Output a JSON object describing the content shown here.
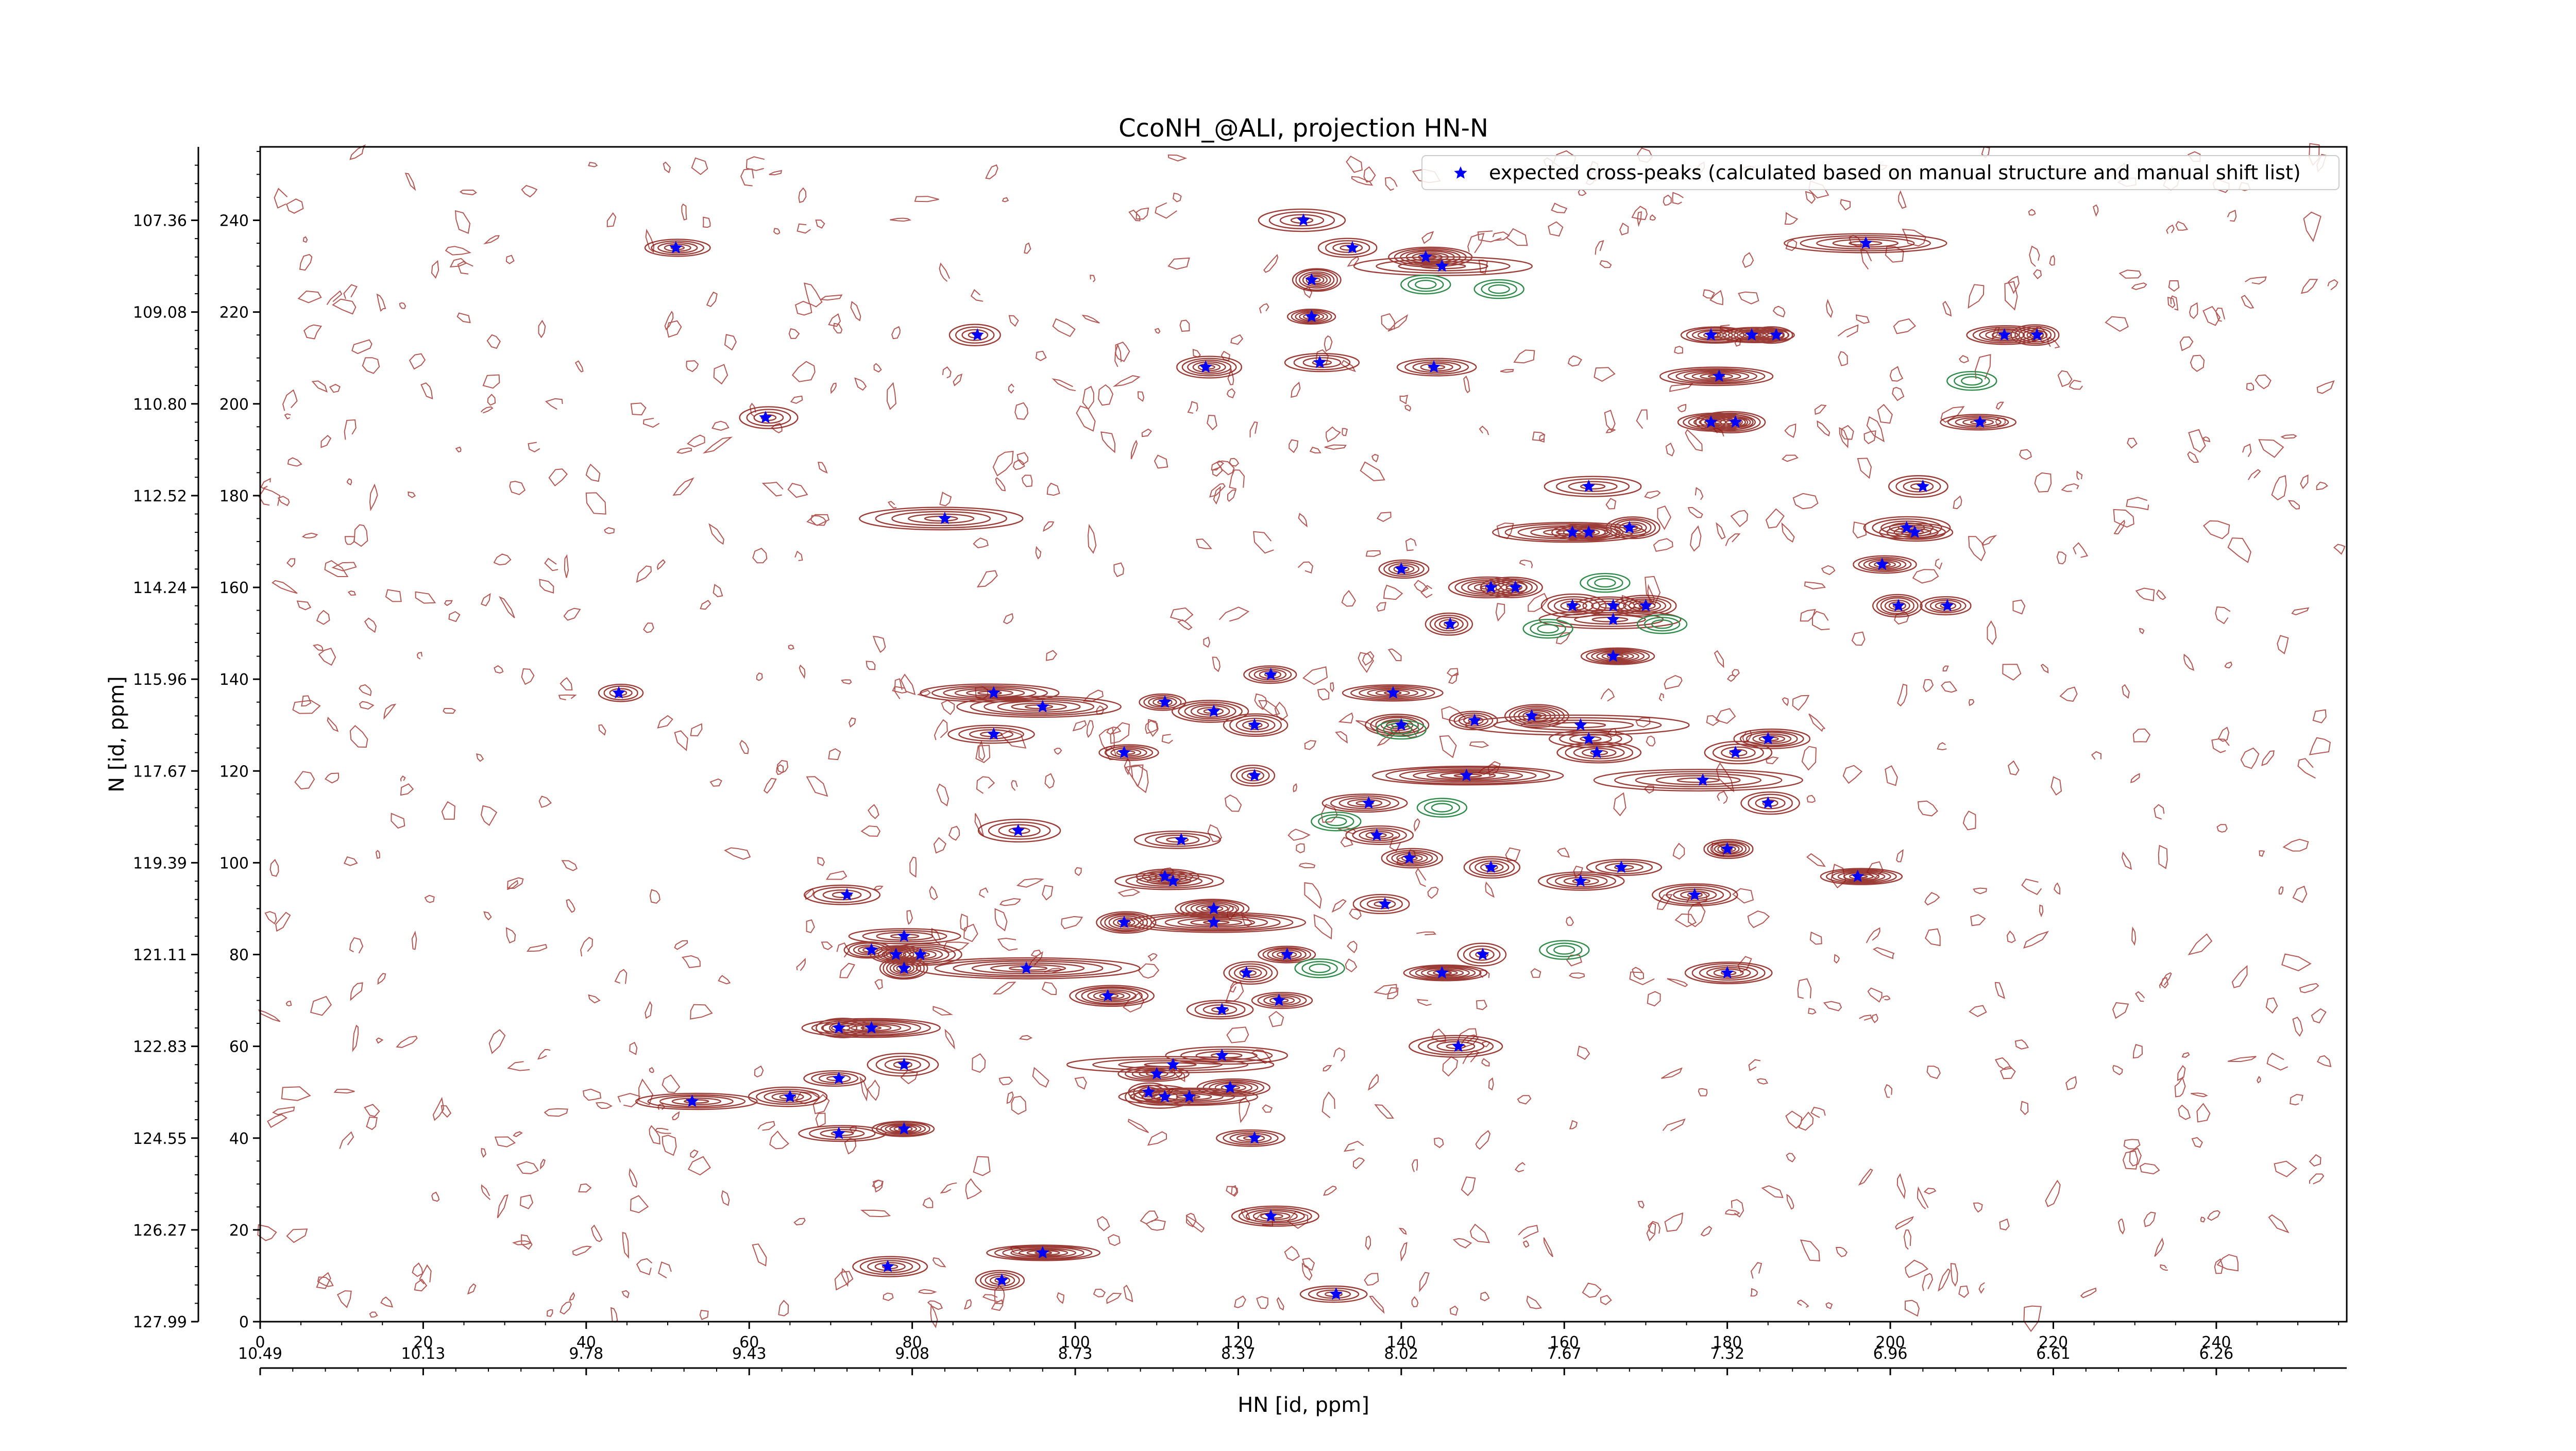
{
  "chart_data": {
    "type": "scatter",
    "title": "CcoNH_@ALI, projection HN-N",
    "xlabel": "HN [id, ppm]",
    "ylabel": "N [id, ppm]",
    "x_index_range": [
      0,
      256
    ],
    "y_index_range": [
      0,
      256
    ],
    "x_index_ticks": [
      0,
      20,
      40,
      60,
      80,
      100,
      120,
      140,
      160,
      180,
      200,
      220,
      240
    ],
    "x_ppm_range": [
      10.49,
      5.98
    ],
    "x_ppm_tick_labels": [
      "10.49",
      "10.13",
      "9.78",
      "9.43",
      "9.08",
      "8.73",
      "8.37",
      "8.02",
      "7.67",
      "7.32",
      "6.96",
      "6.61",
      "6.26"
    ],
    "y_index_ticks": [
      0,
      20,
      40,
      60,
      80,
      100,
      120,
      140,
      160,
      180,
      200,
      220,
      240
    ],
    "y_ppm_tick_labels": [
      "127.99",
      "126.27",
      "124.55",
      "122.83",
      "121.11",
      "119.39",
      "117.67",
      "115.96",
      "114.24",
      "112.52",
      "110.80",
      "109.08",
      "107.36"
    ],
    "grid": false,
    "legend_position": "top-right",
    "series": [
      {
        "name": "expected cross-peaks (calculated based on manual structure and manual shift list)",
        "color": "#0000ff",
        "marker": "star",
        "points": [
          [
            51,
            234
          ],
          [
            128,
            240
          ],
          [
            134,
            234
          ],
          [
            143,
            232
          ],
          [
            145,
            230
          ],
          [
            129,
            227
          ],
          [
            129,
            219
          ],
          [
            197,
            235
          ],
          [
            88,
            215
          ],
          [
            130,
            209
          ],
          [
            116,
            208
          ],
          [
            144,
            208
          ],
          [
            62,
            197
          ],
          [
            178,
            215
          ],
          [
            183,
            215
          ],
          [
            186,
            215
          ],
          [
            214,
            215
          ],
          [
            218,
            215
          ],
          [
            179,
            206
          ],
          [
            178,
            196
          ],
          [
            181,
            196
          ],
          [
            211,
            196
          ],
          [
            163,
            182
          ],
          [
            204,
            182
          ],
          [
            161,
            172
          ],
          [
            163,
            172
          ],
          [
            168,
            173
          ],
          [
            202,
            173
          ],
          [
            203,
            172
          ],
          [
            84,
            175
          ],
          [
            140,
            164
          ],
          [
            151,
            160
          ],
          [
            154,
            160
          ],
          [
            199,
            165
          ],
          [
            161,
            156
          ],
          [
            166,
            156
          ],
          [
            170,
            156
          ],
          [
            201,
            156
          ],
          [
            207,
            156
          ],
          [
            146,
            152
          ],
          [
            166,
            153
          ],
          [
            166,
            145
          ],
          [
            44,
            137
          ],
          [
            90,
            137
          ],
          [
            96,
            134
          ],
          [
            111,
            135
          ],
          [
            117,
            133
          ],
          [
            124,
            141
          ],
          [
            139,
            137
          ],
          [
            140,
            130
          ],
          [
            122,
            130
          ],
          [
            90,
            128
          ],
          [
            149,
            131
          ],
          [
            156,
            132
          ],
          [
            162,
            130
          ],
          [
            163,
            127
          ],
          [
            164,
            124
          ],
          [
            185,
            127
          ],
          [
            181,
            124
          ],
          [
            177,
            118
          ],
          [
            106,
            124
          ],
          [
            122,
            119
          ],
          [
            148,
            119
          ],
          [
            185,
            113
          ],
          [
            136,
            113
          ],
          [
            93,
            107
          ],
          [
            113,
            105
          ],
          [
            137,
            106
          ],
          [
            141,
            101
          ],
          [
            180,
            103
          ],
          [
            151,
            99
          ],
          [
            162,
            96
          ],
          [
            167,
            99
          ],
          [
            196,
            97
          ],
          [
            111,
            97
          ],
          [
            112,
            96
          ],
          [
            72,
            93
          ],
          [
            176,
            93
          ],
          [
            117,
            90
          ],
          [
            138,
            91
          ],
          [
            106,
            87
          ],
          [
            117,
            87
          ],
          [
            79,
            84
          ],
          [
            75,
            81
          ],
          [
            78,
            80
          ],
          [
            81,
            80
          ],
          [
            126,
            80
          ],
          [
            150,
            80
          ],
          [
            79,
            77
          ],
          [
            94,
            77
          ],
          [
            121,
            76
          ],
          [
            145,
            76
          ],
          [
            180,
            76
          ],
          [
            104,
            71
          ],
          [
            125,
            70
          ],
          [
            118,
            68
          ],
          [
            71,
            64
          ],
          [
            75,
            64
          ],
          [
            147,
            60
          ],
          [
            118,
            58
          ],
          [
            79,
            56
          ],
          [
            112,
            56
          ],
          [
            110,
            54
          ],
          [
            71,
            53
          ],
          [
            109,
            50
          ],
          [
            111,
            49
          ],
          [
            114,
            49
          ],
          [
            119,
            51
          ],
          [
            65,
            49
          ],
          [
            53,
            48
          ],
          [
            71,
            41
          ],
          [
            79,
            42
          ],
          [
            122,
            40
          ],
          [
            124,
            23
          ],
          [
            96,
            15
          ],
          [
            77,
            12
          ],
          [
            91,
            9
          ],
          [
            132,
            6
          ]
        ]
      }
    ]
  }
}
